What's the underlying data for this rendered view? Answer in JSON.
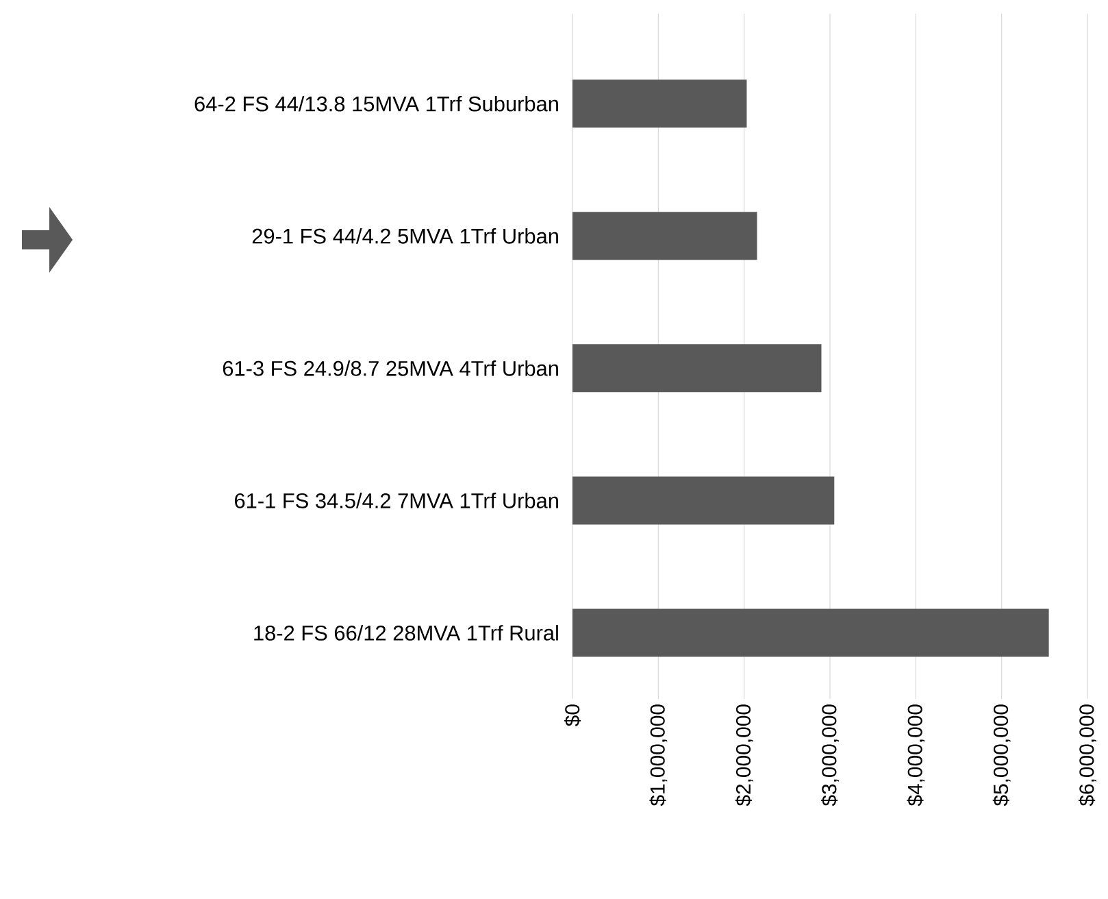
{
  "chart_data": {
    "type": "bar",
    "orientation": "horizontal",
    "categories": [
      "64-2 FS 44/13.8 15MVA 1Trf Suburban",
      "29-1 FS 44/4.2 5MVA 1Trf Urban",
      "61-3 FS 24.9/8.7 25MVA 4Trf Urban",
      "61-1 FS 34.5/4.2 7MVA 1Trf Urban",
      "18-2 FS 66/12 28MVA 1Trf Rural"
    ],
    "values": [
      2030000,
      2150000,
      2900000,
      3050000,
      5550000
    ],
    "color": "#595959",
    "xlim": [
      0,
      6000000
    ],
    "xticks": [
      {
        "value": 0,
        "label": "$0"
      },
      {
        "value": 1000000,
        "label": "$1,000,000"
      },
      {
        "value": 2000000,
        "label": "$2,000,000"
      },
      {
        "value": 3000000,
        "label": "$3,000,000"
      },
      {
        "value": 4000000,
        "label": "$4,000,000"
      },
      {
        "value": 5000000,
        "label": "$5,000,000"
      },
      {
        "value": 6000000,
        "label": "$6,000,000"
      }
    ],
    "grid": "x"
  }
}
